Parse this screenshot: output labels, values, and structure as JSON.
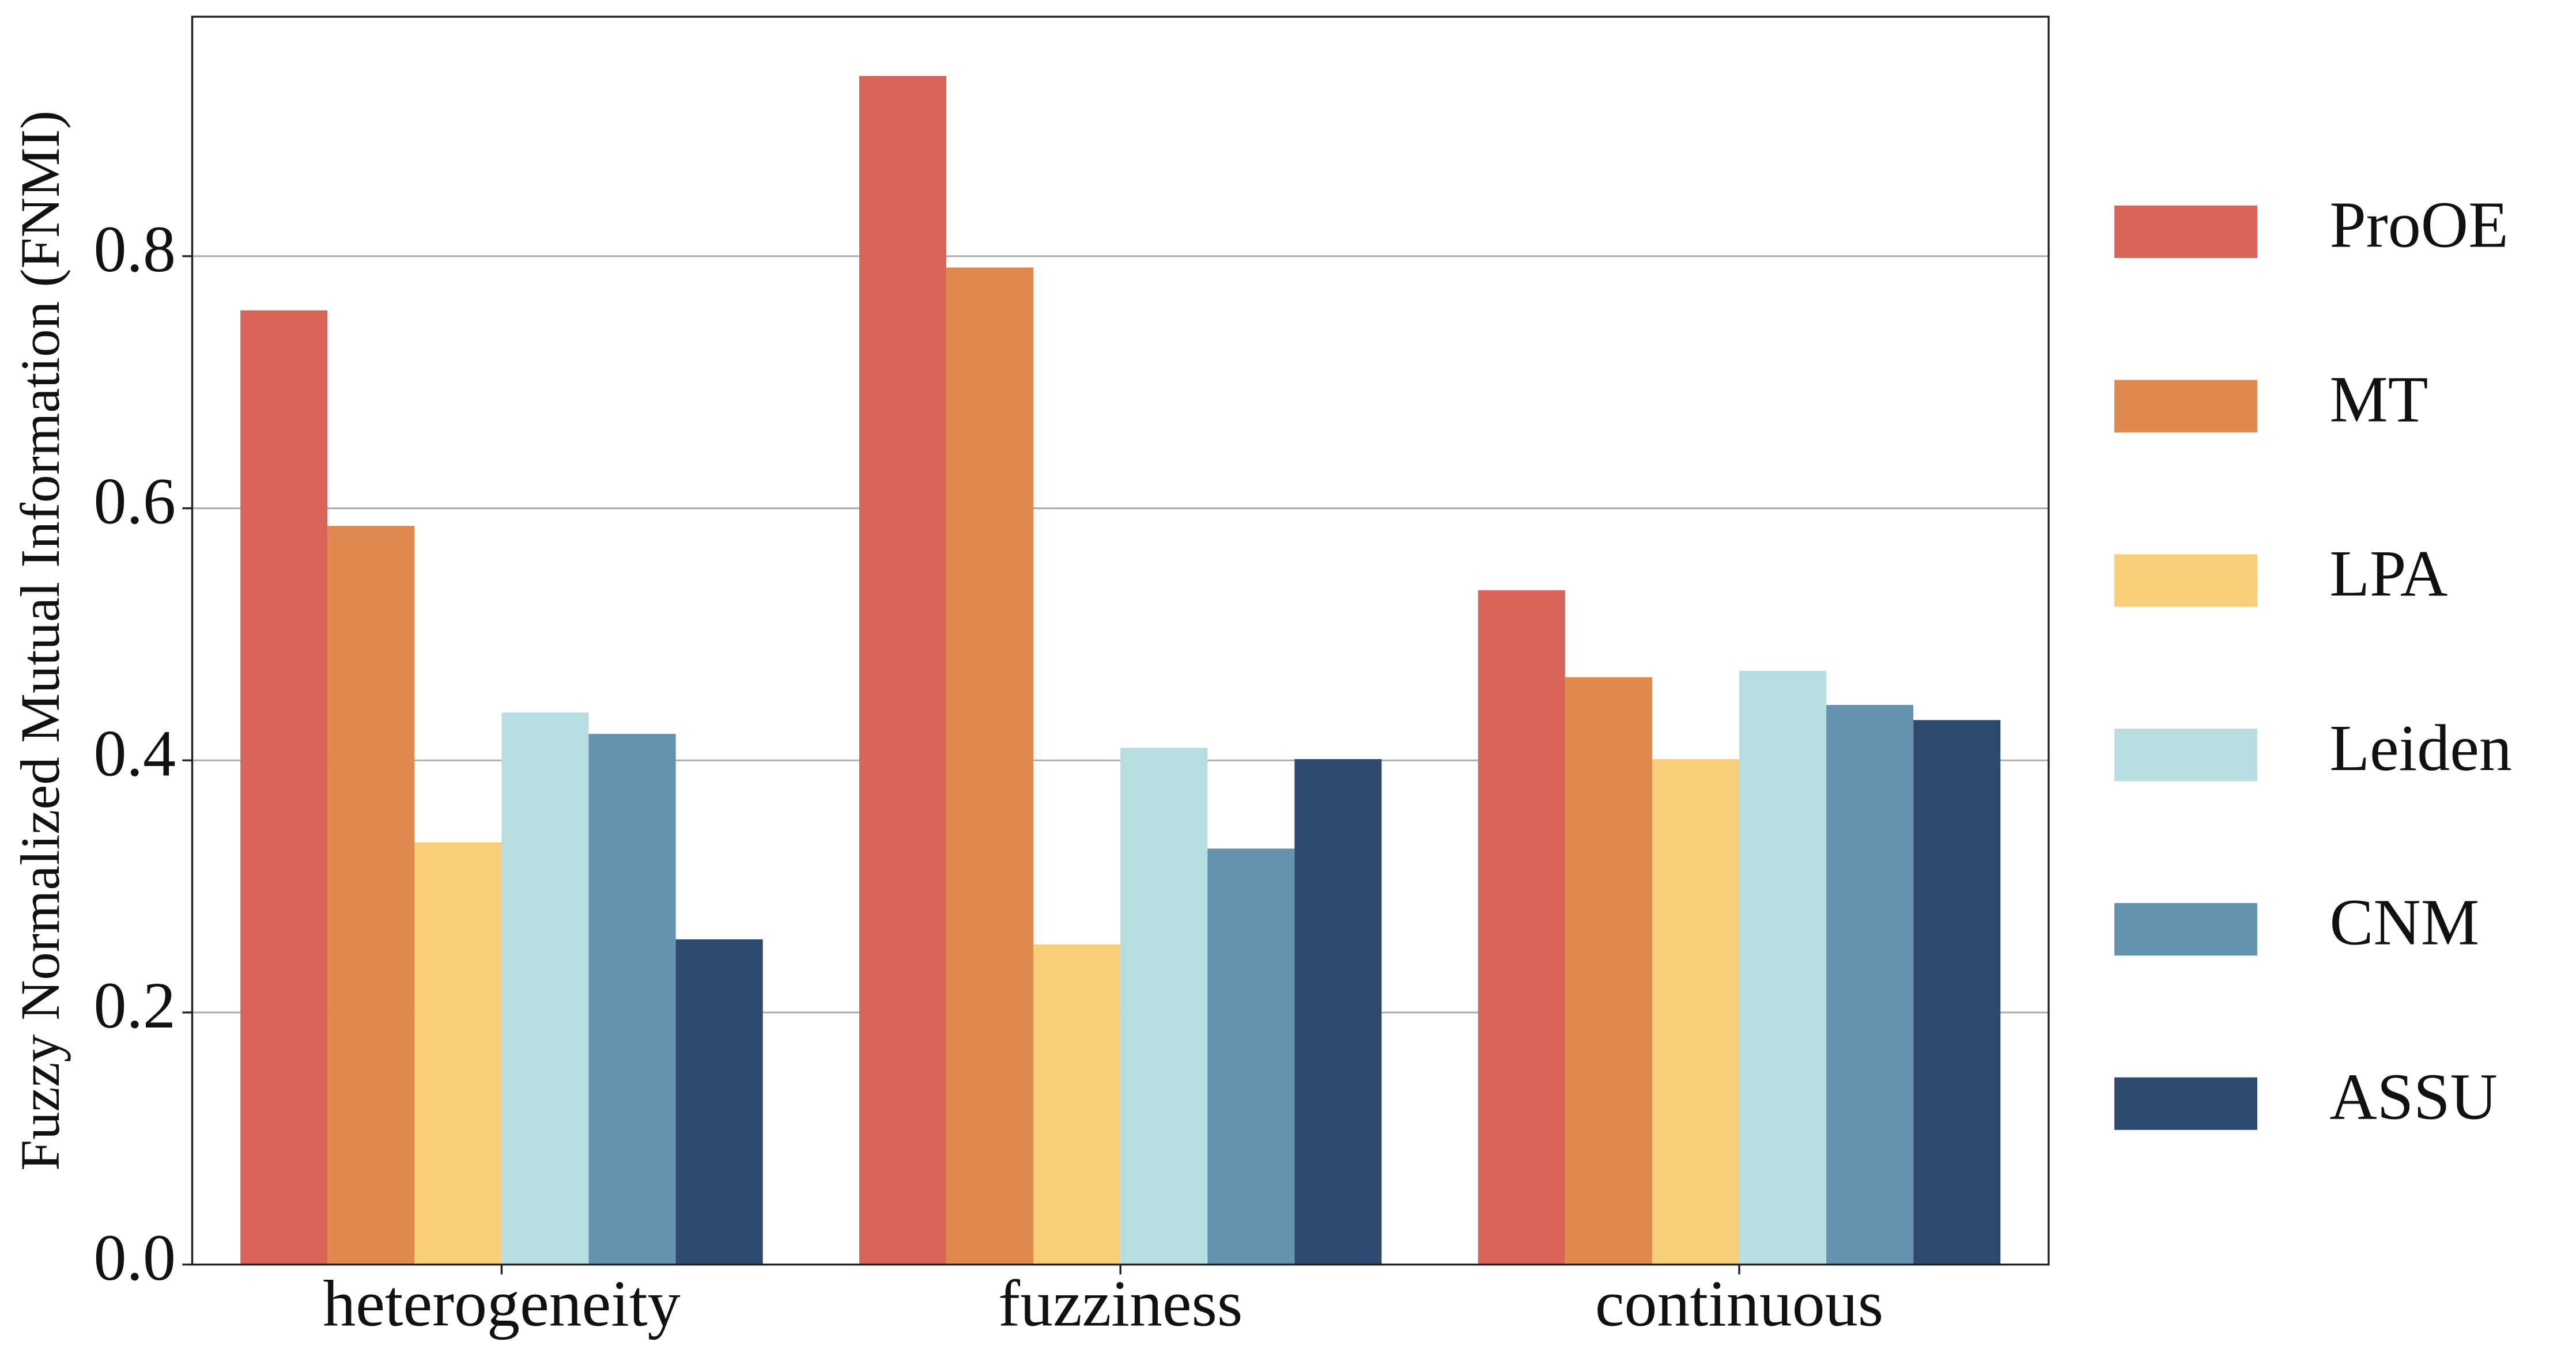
{
  "chart_data": {
    "type": "bar",
    "ylabel": "Fuzzy Normalized Mutual Information (FNMI)",
    "categories": [
      "heterogeneity",
      "fuzziness",
      "continuous"
    ],
    "series": [
      {
        "name": "ProOE",
        "color": "#d9645a",
        "values": [
          0.757,
          0.943,
          0.535
        ]
      },
      {
        "name": "MT",
        "color": "#e0894f",
        "values": [
          0.586,
          0.791,
          0.466
        ]
      },
      {
        "name": "LPA",
        "color": "#f6cf78",
        "values": [
          0.335,
          0.254,
          0.401
        ]
      },
      {
        "name": "Leiden",
        "color": "#b8dde0",
        "values": [
          0.438,
          0.41,
          0.471
        ]
      },
      {
        "name": "CNM",
        "color": "#6593ae",
        "values": [
          0.421,
          0.33,
          0.444
        ]
      },
      {
        "name": "ASSU",
        "color": "#2d4a6e",
        "values": [
          0.258,
          0.401,
          0.432
        ]
      }
    ],
    "ylim": [
      0,
      0.99
    ],
    "yticks": [
      {
        "value": 0,
        "label": "0.0"
      },
      0.2,
      0.4,
      0.6,
      0.8
    ],
    "grid": true,
    "legend": "right"
  }
}
